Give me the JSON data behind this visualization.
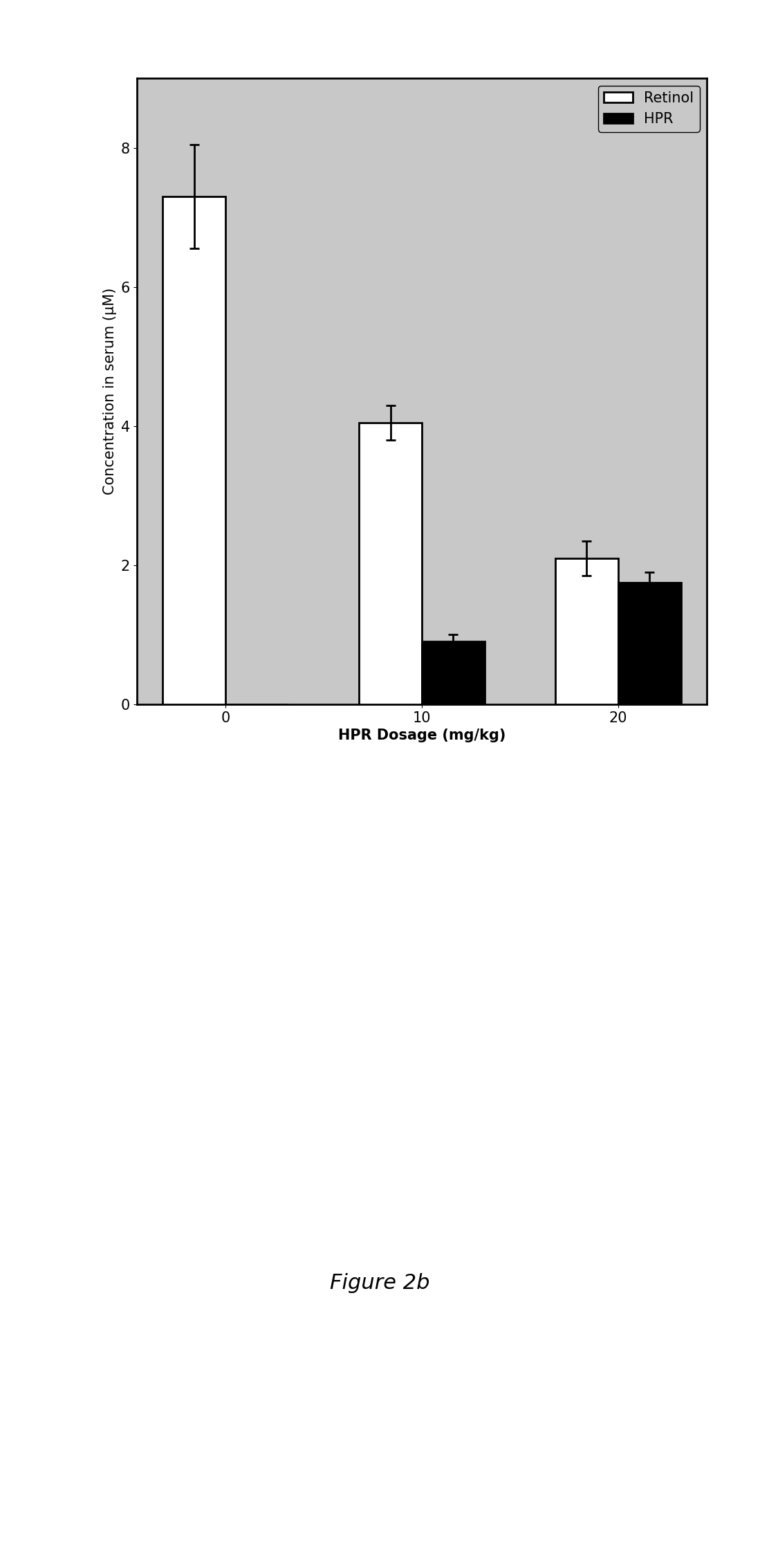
{
  "categories": [
    "0",
    "10",
    "20"
  ],
  "retinol_values": [
    7.3,
    4.05,
    2.1
  ],
  "retinol_errors": [
    0.75,
    0.25,
    0.25
  ],
  "hpr_values": [
    0.0,
    0.9,
    1.75
  ],
  "hpr_errors": [
    0.0,
    0.1,
    0.15
  ],
  "bar_width": 0.32,
  "retinol_color": "#ffffff",
  "retinol_edgecolor": "#000000",
  "hpr_color": "#000000",
  "hpr_edgecolor": "#000000",
  "ylabel": "Concentration in serum (μM)",
  "xlabel": "HPR Dosage (mg/kg)",
  "ylim": [
    0,
    9
  ],
  "yticks": [
    0,
    2,
    4,
    6,
    8
  ],
  "legend_labels": [
    "Retinol",
    "HPR"
  ],
  "figure_caption": "Figure 2b",
  "plot_bg_color": "#c8c8c8",
  "label_fontsize": 15,
  "tick_fontsize": 15,
  "legend_fontsize": 15,
  "caption_fontsize": 22,
  "linewidth": 2.0,
  "error_capsize": 5,
  "error_linewidth": 2
}
